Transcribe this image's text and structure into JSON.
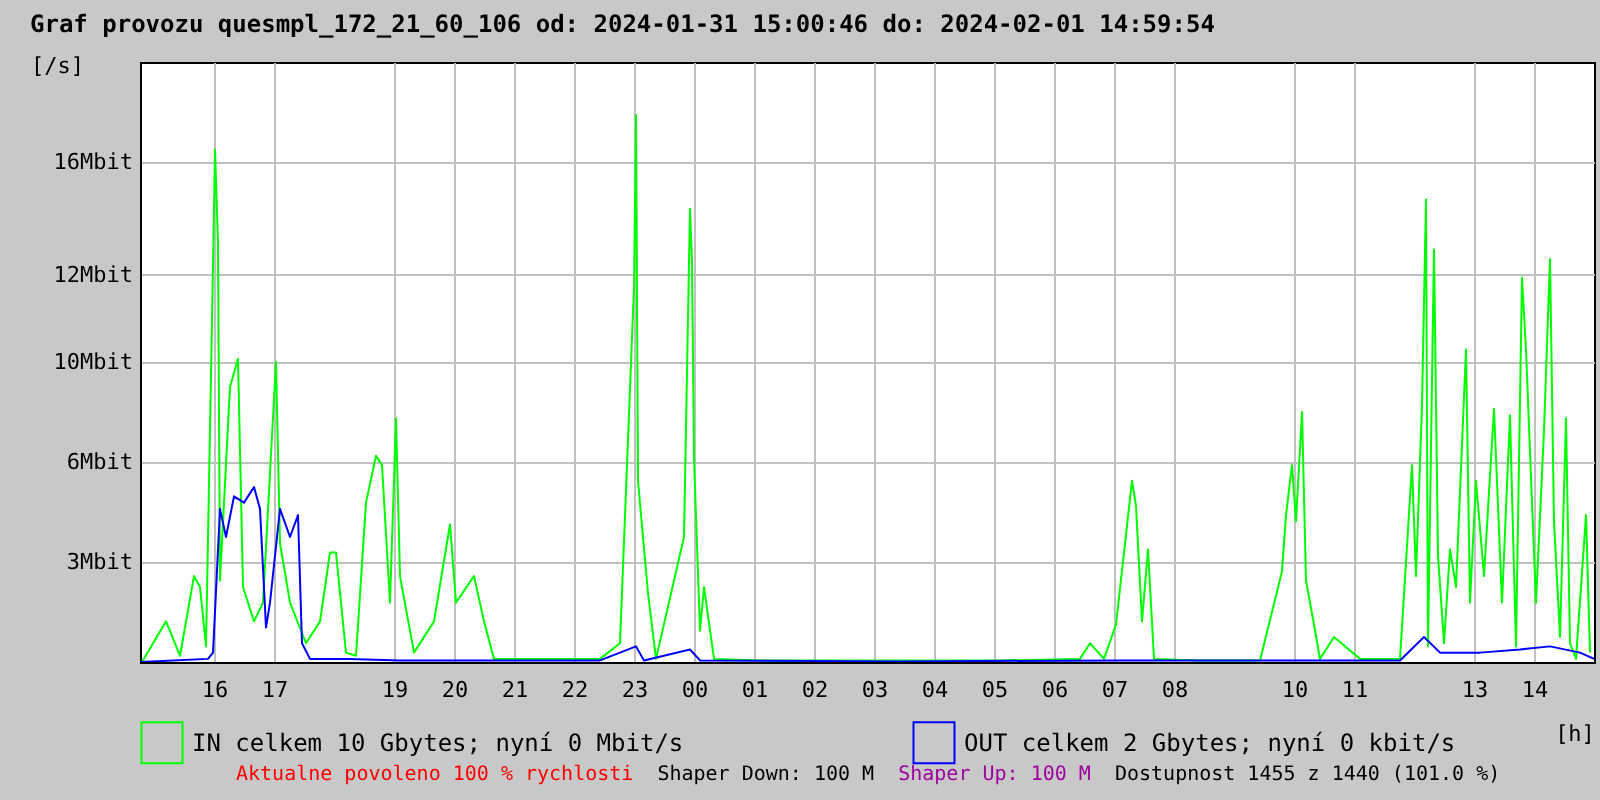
{
  "chart_data": {
    "type": "line",
    "title": "Graf provozu quesmpl_172_21_60_106 od: 2024-01-31 15:00:46 do: 2024-02-01 14:59:54",
    "ylabel": "[/s]",
    "xlabel": "[h]",
    "xlim": [
      "2024-01-31T14:46",
      "2024-02-01T15:00"
    ],
    "xticks": [
      {
        "value": "2024-01-31T16:00",
        "label": "16"
      },
      {
        "value": "2024-01-31T17:00",
        "label": "17"
      },
      {
        "value": "2024-01-31T19:00",
        "label": "19"
      },
      {
        "value": "2024-01-31T20:00",
        "label": "20"
      },
      {
        "value": "2024-01-31T21:00",
        "label": "21"
      },
      {
        "value": "2024-01-31T22:00",
        "label": "22"
      },
      {
        "value": "2024-01-31T23:00",
        "label": "23"
      },
      {
        "value": "2024-02-01T00:00",
        "label": "00"
      },
      {
        "value": "2024-02-01T01:00",
        "label": "01"
      },
      {
        "value": "2024-02-01T02:00",
        "label": "02"
      },
      {
        "value": "2024-02-01T03:00",
        "label": "03"
      },
      {
        "value": "2024-02-01T04:00",
        "label": "04"
      },
      {
        "value": "2024-02-01T05:00",
        "label": "05"
      },
      {
        "value": "2024-02-01T06:00",
        "label": "06"
      },
      {
        "value": "2024-02-01T07:00",
        "label": "07"
      },
      {
        "value": "2024-02-01T08:00",
        "label": "08"
      },
      {
        "value": "2024-02-01T10:00",
        "label": "10"
      },
      {
        "value": "2024-02-01T11:00",
        "label": "11"
      },
      {
        "value": "2024-02-01T13:00",
        "label": "13"
      },
      {
        "value": "2024-02-01T14:00",
        "label": "14"
      }
    ],
    "ylim": [
      0,
      19.2
    ],
    "yticks": [
      {
        "value": 3.2,
        "label": "3Mbit"
      },
      {
        "value": 6.4,
        "label": "6Mbit"
      },
      {
        "value": 9.6,
        "label": "10Mbit"
      },
      {
        "value": 12.4,
        "label": "12Mbit"
      },
      {
        "value": 16,
        "label": "16Mbit"
      }
    ],
    "grid": true,
    "legend": "bottom",
    "marker": "none",
    "line_style": "solid",
    "series": [
      {
        "name": "IN celkem 10 Gbytes; nyní 0 Mbit/s",
        "color": "#00ff00",
        "x": [
          "2024-01-31T14:48",
          "2024-01-31T15:12",
          "2024-01-31T15:26",
          "2024-01-31T15:40",
          "2024-01-31T15:46",
          "2024-01-31T15:52",
          "2024-01-31T15:58",
          "2024-01-31T16:01",
          "2024-01-31T16:04",
          "2024-01-31T16:06",
          "2024-01-31T16:16",
          "2024-01-31T16:24",
          "2024-01-31T16:29",
          "2024-01-31T16:40",
          "2024-01-31T16:49",
          "2024-01-31T17:02",
          "2024-01-31T17:06",
          "2024-01-31T17:16",
          "2024-01-31T17:32",
          "2024-01-31T17:46",
          "2024-01-31T17:56",
          "2024-01-31T18:02",
          "2024-01-31T18:12",
          "2024-01-31T18:22",
          "2024-01-31T18:32",
          "2024-01-31T18:42",
          "2024-01-31T18:48",
          "2024-01-31T18:56",
          "2024-01-31T19:02",
          "2024-01-31T19:06",
          "2024-01-31T19:20",
          "2024-01-31T19:40",
          "2024-01-31T19:56",
          "2024-01-31T20:02",
          "2024-01-31T20:20",
          "2024-01-31T20:30",
          "2024-01-31T20:40",
          "2024-01-31T21:06",
          "2024-01-31T21:46",
          "2024-01-31T22:26",
          "2024-01-31T22:46",
          "2024-01-31T23:00",
          "2024-01-31T23:02",
          "2024-01-31T23:04",
          "2024-01-31T23:14",
          "2024-01-31T23:22",
          "2024-01-31T23:50",
          "2024-01-31T23:56",
          "2024-01-31T23:58",
          "2024-02-01T00:00",
          "2024-02-01T00:06",
          "2024-02-01T00:10",
          "2024-02-01T00:20",
          "2024-02-01T01:06",
          "2024-02-01T02:26",
          "2024-02-01T03:46",
          "2024-02-01T05:06",
          "2024-02-01T06:26",
          "2024-02-01T06:36",
          "2024-02-01T06:50",
          "2024-02-01T07:02",
          "2024-02-01T07:18",
          "2024-02-01T07:22",
          "2024-02-01T07:28",
          "2024-02-01T07:34",
          "2024-02-01T07:40",
          "2024-02-01T08:26",
          "2024-02-01T09:26",
          "2024-02-01T09:48",
          "2024-02-01T09:52",
          "2024-02-01T09:58",
          "2024-02-01T10:02",
          "2024-02-01T10:08",
          "2024-02-01T10:12",
          "2024-02-01T10:20",
          "2024-02-01T10:26",
          "2024-02-01T10:40",
          "2024-02-01T11:06",
          "2024-02-01T11:46",
          "2024-02-01T11:58",
          "2024-02-01T12:02",
          "2024-02-01T12:08",
          "2024-02-01T12:12",
          "2024-02-01T12:14",
          "2024-02-01T12:20",
          "2024-02-01T12:24",
          "2024-02-01T12:30",
          "2024-02-01T12:36",
          "2024-02-01T12:42",
          "2024-02-01T12:52",
          "2024-02-01T12:56",
          "2024-02-01T13:02",
          "2024-02-01T13:10",
          "2024-02-01T13:20",
          "2024-02-01T13:28",
          "2024-02-01T13:36",
          "2024-02-01T13:42",
          "2024-02-01T13:48",
          "2024-02-01T13:52",
          "2024-02-01T13:58",
          "2024-02-01T14:02",
          "2024-02-01T14:10",
          "2024-02-01T14:16",
          "2024-02-01T14:20",
          "2024-02-01T14:26",
          "2024-02-01T14:32",
          "2024-02-01T14:36",
          "2024-02-01T14:42",
          "2024-02-01T14:52",
          "2024-02-01T14:56"
        ],
        "values": [
          0,
          1.3,
          0.2,
          2.75,
          2.4,
          0.5,
          10.9,
          16.4,
          13.4,
          2.6,
          8.8,
          9.7,
          2.4,
          1.3,
          1.9,
          9.6,
          3.8,
          1.9,
          0.6,
          1.3,
          3.5,
          3.5,
          0.3,
          0.2,
          5.1,
          6.6,
          6.3,
          1.9,
          7.8,
          2.75,
          0.3,
          1.3,
          4.4,
          1.9,
          2.75,
          1.3,
          0.1,
          0.1,
          0.1,
          0.1,
          0.6,
          12.0,
          17.5,
          5.8,
          2.2,
          0.1,
          4.0,
          14.5,
          12.8,
          6.5,
          1.0,
          2.4,
          0.1,
          0.05,
          0.05,
          0.05,
          0.05,
          0.1,
          0.6,
          0.1,
          1.2,
          5.8,
          5.0,
          1.3,
          3.6,
          0.1,
          0.05,
          0.05,
          2.9,
          4.7,
          6.3,
          4.5,
          8.0,
          2.6,
          1.2,
          0.1,
          0.8,
          0.1,
          0.1,
          6.3,
          2.75,
          8.2,
          14.8,
          0.5,
          13.2,
          3.4,
          0.6,
          3.6,
          2.4,
          10.0,
          1.9,
          5.8,
          2.75,
          8.1,
          1.9,
          7.9,
          0.5,
          12.3,
          10.0,
          5.1,
          1.9,
          7.4,
          12.9,
          4.5,
          0.8,
          7.8,
          0.6,
          0.1,
          4.7,
          0.3
        ]
      },
      {
        "name": "OUT celkem 2 Gbytes; nyní 0 kbit/s",
        "color": "#0000ff",
        "x": [
          "2024-01-31T14:46",
          "2024-01-31T15:54",
          "2024-01-31T15:59",
          "2024-01-31T16:06",
          "2024-01-31T16:12",
          "2024-01-31T16:20",
          "2024-01-31T16:30",
          "2024-01-31T16:40",
          "2024-01-31T16:46",
          "2024-01-31T16:52",
          "2024-01-31T16:56",
          "2024-01-31T17:06",
          "2024-01-31T17:16",
          "2024-01-31T17:24",
          "2024-01-31T17:28",
          "2024-01-31T17:36",
          "2024-01-31T18:16",
          "2024-01-31T19:06",
          "2024-01-31T20:26",
          "2024-01-31T22:26",
          "2024-01-31T23:02",
          "2024-01-31T23:10",
          "2024-01-31T23:56",
          "2024-02-01T00:06",
          "2024-02-01T03:26",
          "2024-02-01T07:06",
          "2024-02-01T11:46",
          "2024-02-01T12:10",
          "2024-02-01T12:26",
          "2024-02-01T13:06",
          "2024-02-01T13:46",
          "2024-02-01T14:16",
          "2024-02-01T14:46",
          "2024-02-01T15:00"
        ],
        "values": [
          0,
          0.1,
          0.3,
          4.9,
          4.0,
          5.3,
          5.1,
          5.6,
          4.9,
          1.1,
          1.9,
          4.9,
          4.0,
          4.7,
          0.6,
          0.1,
          0.1,
          0.05,
          0.05,
          0.05,
          0.5,
          0.05,
          0.4,
          0.05,
          0.02,
          0.05,
          0.05,
          0.8,
          0.3,
          0.3,
          0.4,
          0.5,
          0.3,
          0.1
        ]
      }
    ],
    "annotations": [
      "Aktualne povoleno 100 % rychlosti",
      "Shaper Down: 100 M",
      "Shaper Up: 100 M",
      "Dostupnost 1455 z 1440 (101.0 %)"
    ]
  }
}
